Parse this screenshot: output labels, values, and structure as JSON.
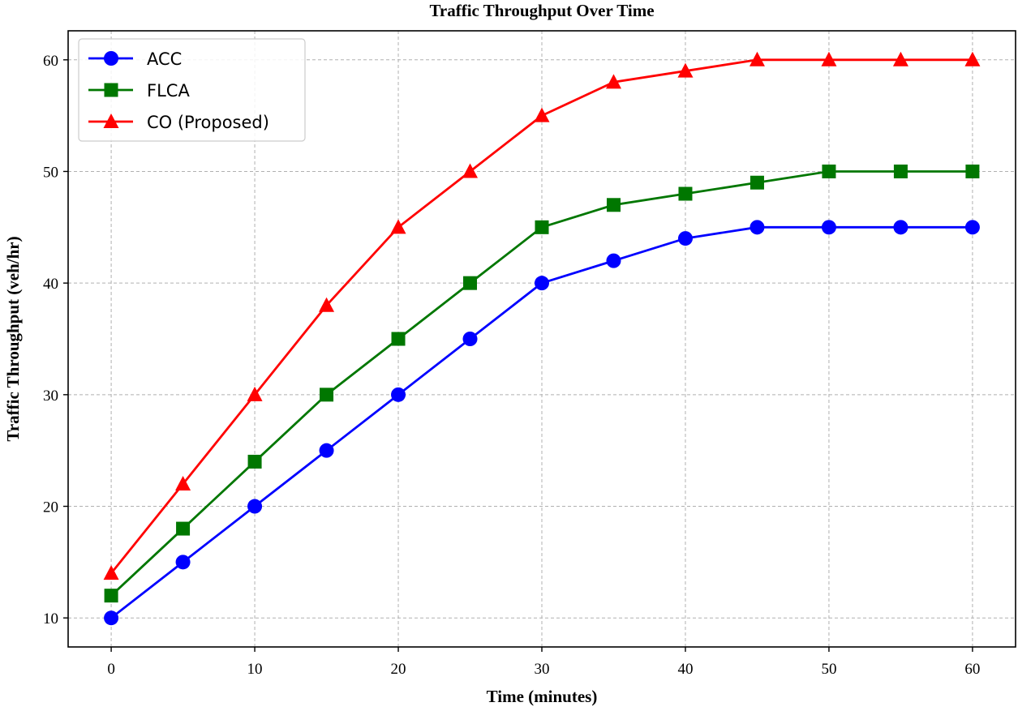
{
  "chart_data": {
    "type": "line",
    "title": "Traffic Throughput Over Time",
    "xlabel": "Time (minutes)",
    "ylabel": "Traffic Throughput (veh/hr)",
    "x": [
      0,
      5,
      10,
      15,
      20,
      25,
      30,
      35,
      40,
      45,
      50,
      55,
      60
    ],
    "xlim": [
      -3,
      63
    ],
    "ylim": [
      7.4,
      62.6
    ],
    "xticks": [
      0,
      10,
      20,
      30,
      40,
      50,
      60
    ],
    "yticks": [
      10,
      20,
      30,
      40,
      50,
      60
    ],
    "grid": true,
    "legend_position": "top-left",
    "series": [
      {
        "name": "ACC",
        "color": "#0000ff",
        "marker": "circle",
        "values": [
          10,
          15,
          20,
          25,
          30,
          35,
          40,
          42,
          44,
          45,
          45,
          45,
          45
        ]
      },
      {
        "name": "FLCA",
        "color": "#007700",
        "marker": "square",
        "values": [
          12,
          18,
          24,
          30,
          35,
          40,
          45,
          47,
          48,
          49,
          50,
          50,
          50
        ]
      },
      {
        "name": "CO (Proposed)",
        "color": "#ff0000",
        "marker": "triangle",
        "values": [
          14,
          22,
          30,
          38,
          45,
          50,
          55,
          58,
          59,
          60,
          60,
          60,
          60
        ]
      }
    ]
  }
}
